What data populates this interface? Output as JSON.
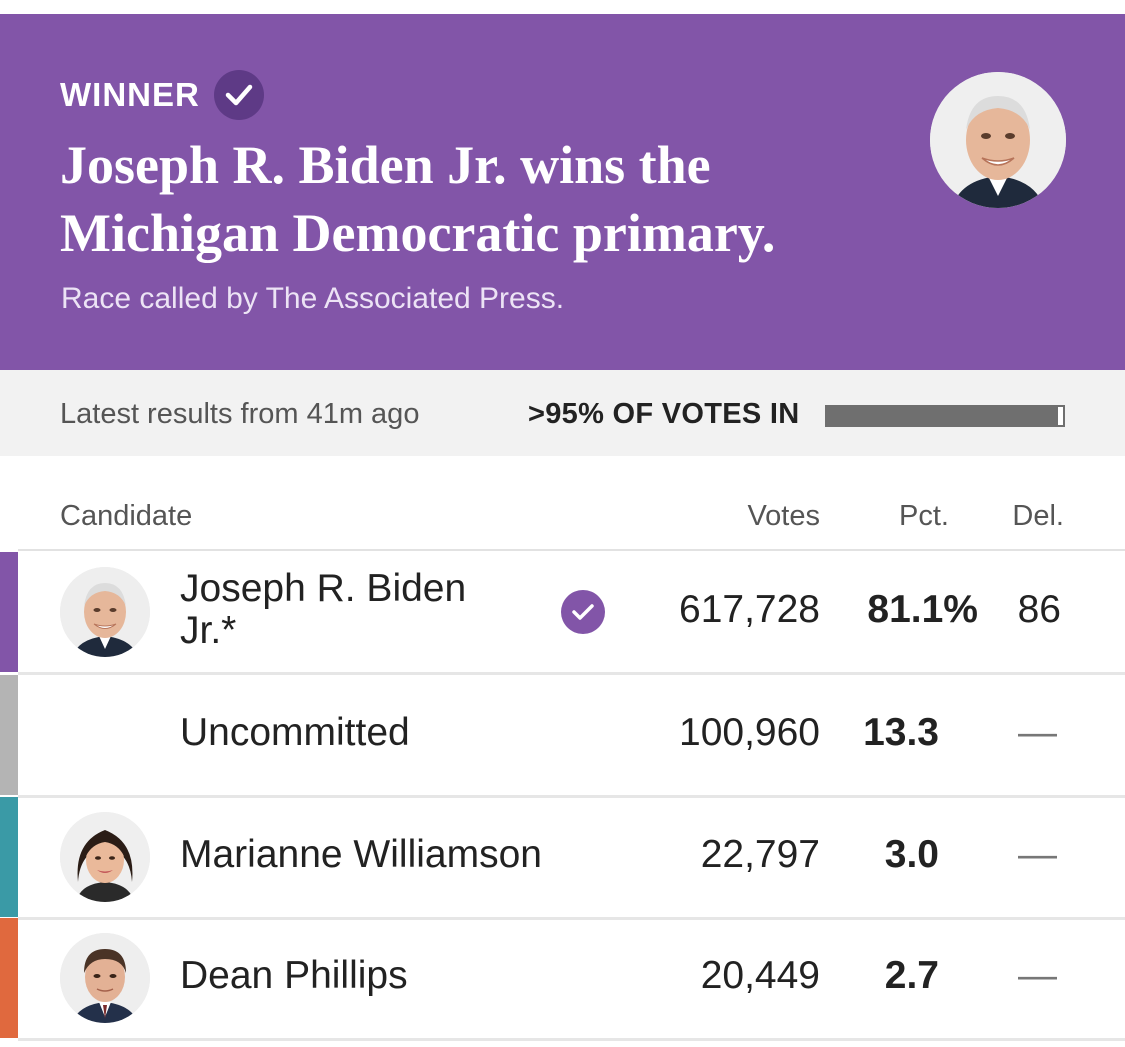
{
  "banner": {
    "winner_label": "WINNER",
    "headline_line1": "Joseph R. Biden Jr. wins the",
    "headline_line2": "Michigan Democratic primary.",
    "called_by": "Race called by The Associated Press.",
    "background_color": "#8255a8"
  },
  "status": {
    "latest": "Latest results from 41m ago",
    "votes_in": ">95% OF VOTES IN",
    "reporting_fraction": 0.98
  },
  "table": {
    "headers": {
      "candidate": "Candidate",
      "votes": "Votes",
      "pct": "Pct.",
      "del": "Del."
    },
    "rows": [
      {
        "name_line1": "Joseph R. Biden",
        "name_line2": "Jr.*",
        "votes": "617,728",
        "pct": "81.1%",
        "del": "86",
        "color": "#8255a8",
        "winner": true,
        "photo_icon": "biden-avatar"
      },
      {
        "name": "Uncommitted",
        "votes": "100,960",
        "pct": "13.3",
        "del": "—",
        "color": "#b4b4b4",
        "winner": false
      },
      {
        "name": "Marianne Williamson",
        "votes": "22,797",
        "pct": "3.0",
        "del": "—",
        "color": "#3a9aa6",
        "winner": false,
        "photo_icon": "williamson-avatar"
      },
      {
        "name": "Dean Phillips",
        "votes": "20,449",
        "pct": "2.7",
        "del": "—",
        "color": "#e0693e",
        "winner": false,
        "photo_icon": "phillips-avatar"
      }
    ]
  }
}
